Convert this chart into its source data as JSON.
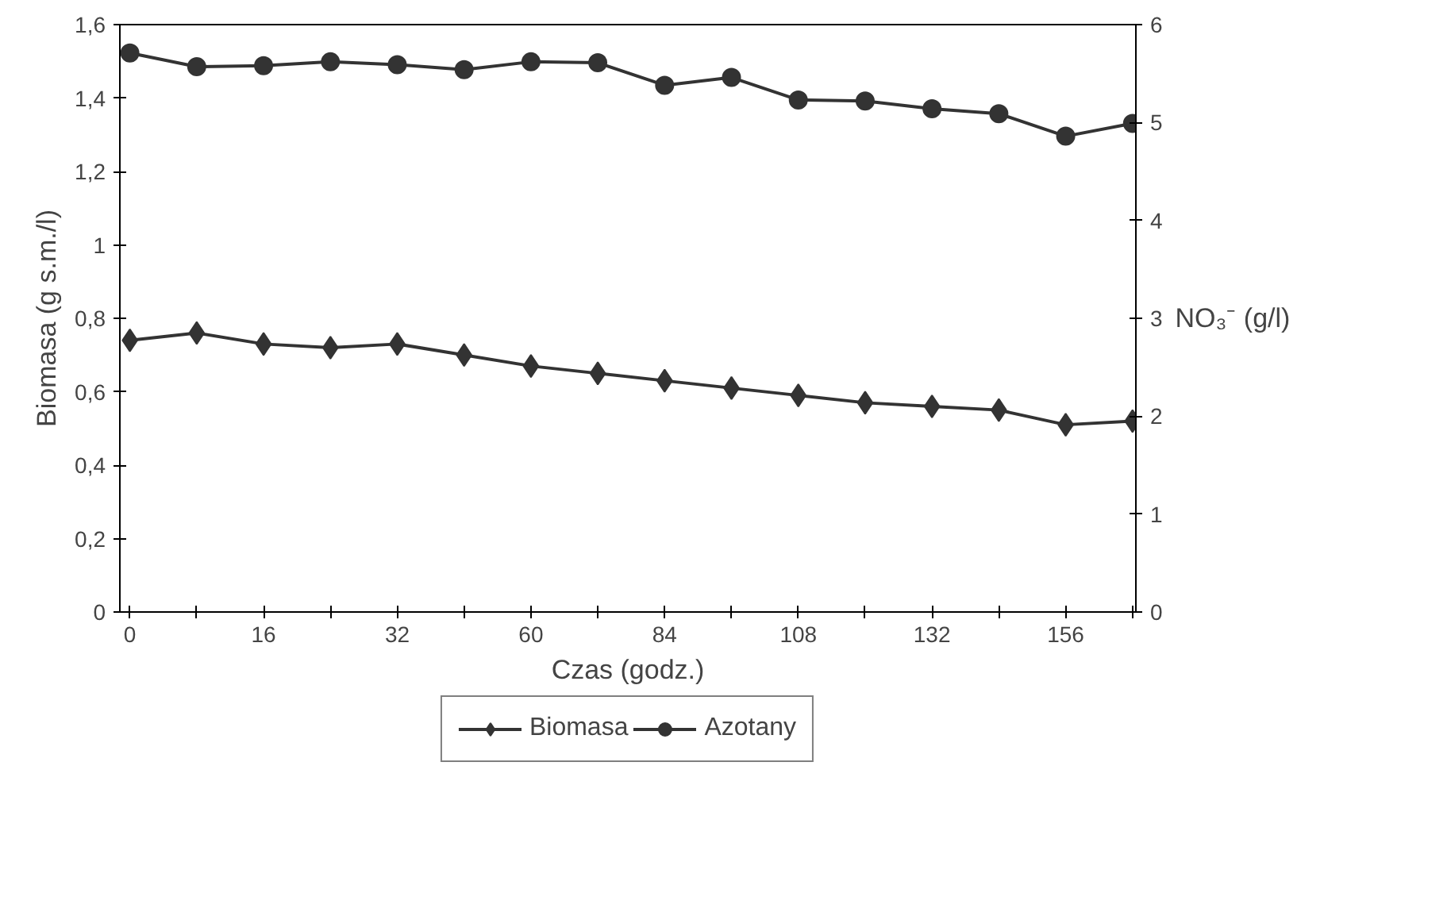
{
  "chart_data": {
    "type": "line",
    "xlabel": "Czas (godz.)",
    "ylabel": "Biomasa (g s.m./l)",
    "y2label": "NO₃⁻ (g/l)",
    "categories": [
      "0",
      null,
      "16",
      null,
      "32",
      null,
      "60",
      null,
      "84",
      null,
      "108",
      null,
      "132",
      null,
      "156",
      null
    ],
    "series": [
      {
        "name": "Biomasa",
        "color": "#333333",
        "marker": "diamond",
        "values": [
          0.74,
          0.76,
          0.73,
          0.72,
          0.73,
          0.7,
          0.67,
          0.65,
          0.63,
          0.61,
          0.59,
          0.57,
          0.56,
          0.55,
          0.51,
          0.52
        ]
      },
      {
        "name": "Azotany",
        "color": "#333333",
        "marker": "circle",
        "axis": "y2",
        "values": [
          5.71,
          5.57,
          5.58,
          5.62,
          5.59,
          5.54,
          5.62,
          5.61,
          5.38,
          5.46,
          5.23,
          5.22,
          5.14,
          5.09,
          4.86,
          4.99
        ]
      }
    ],
    "ylim": [
      0,
      1.6
    ],
    "yticks": [
      0,
      {
        "value": 0.2,
        "label": "0,2"
      },
      {
        "value": 0.4,
        "label": "0,4"
      },
      {
        "value": 0.6,
        "label": "0,6"
      },
      {
        "value": 0.8,
        "label": "0,8"
      },
      1,
      {
        "value": 1.2,
        "label": "1,2"
      },
      {
        "value": 1.4,
        "label": "1,4"
      },
      {
        "value": 1.6,
        "label": "1,6"
      }
    ],
    "y2lim": [
      0,
      6
    ],
    "y2ticks": [
      0,
      1,
      2,
      3,
      4,
      5,
      6
    ],
    "legend": "bottom",
    "line_style": "solid"
  }
}
